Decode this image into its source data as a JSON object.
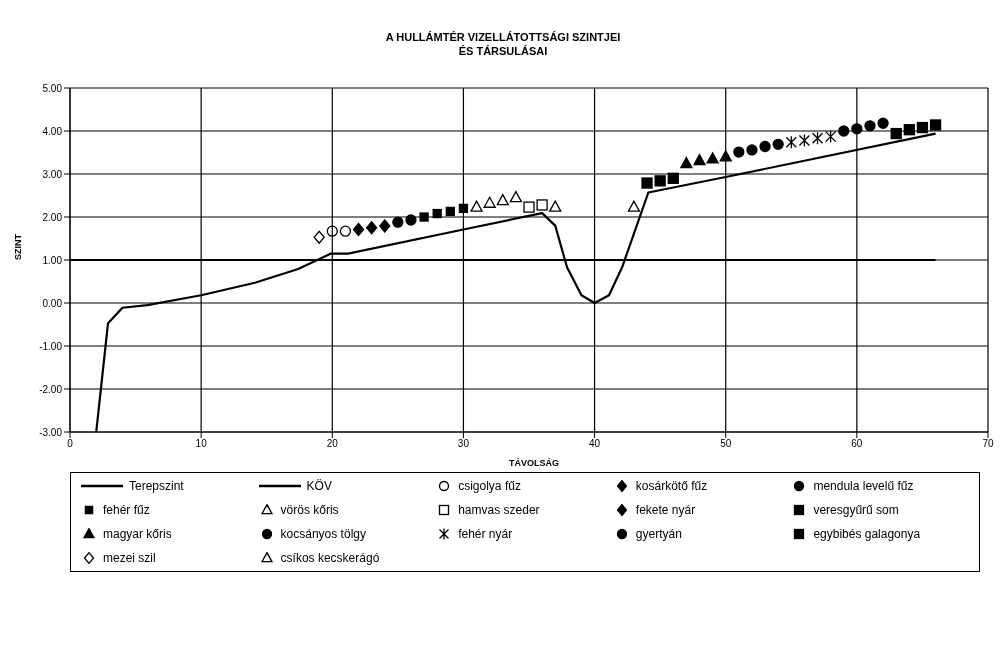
{
  "chart_data": {
    "type": "scatter",
    "title": "A HULLÁMTÉR VIZELLÁTOTTSÁGI SZINTJEI\nÉS TÁRSULÁSAI",
    "xlabel": "TÁVOLSÁG",
    "ylabel": "SZINT",
    "xlim": [
      0,
      70
    ],
    "xticks": [
      0,
      10,
      20,
      30,
      40,
      50,
      60,
      70
    ],
    "ylim": [
      -3,
      5
    ],
    "yticks": [
      {
        "value": -3,
        "label": "-3.00"
      },
      {
        "value": -2,
        "label": "-2.00"
      },
      {
        "value": -1,
        "label": "-1.00"
      },
      {
        "value": 0,
        "label": "0.00"
      },
      {
        "value": 1,
        "label": "1.00"
      },
      {
        "value": 2,
        "label": "2.00"
      },
      {
        "value": 3,
        "label": "3.00"
      },
      {
        "value": 4,
        "label": "4.00"
      },
      {
        "value": 5,
        "label": "5.00"
      }
    ],
    "grid": true,
    "legend": "bottom",
    "series": [
      {
        "name": "Terepszint",
        "type": "line",
        "marker": "none",
        "color": "#000000",
        "x": [
          2,
          2.9,
          4,
          5.9,
          10,
          14.1,
          17.4,
          19.9,
          21.2,
          30,
          36,
          37,
          37.9,
          39,
          40,
          41.1,
          42.1,
          44.1,
          50,
          66
        ],
        "values": [
          -3,
          -0.47,
          -0.11,
          -0.05,
          0.18,
          0.47,
          0.79,
          1.15,
          1.15,
          1.71,
          2.09,
          1.8,
          0.83,
          0.18,
          0,
          0.18,
          0.83,
          2.57,
          2.93,
          3.94
        ]
      },
      {
        "name": "KÖV",
        "type": "line",
        "marker": "none",
        "color": "#000000",
        "x": [
          0,
          66
        ],
        "values": [
          1,
          1
        ]
      },
      {
        "name": "csigolya fűz",
        "marker": "circle",
        "color": "#000000",
        "x": [
          20,
          21
        ],
        "values": [
          1.67,
          1.67
        ]
      },
      {
        "name": "kosárkötő fűz",
        "marker": "diamond",
        "color": "#000000",
        "x": [
          22,
          23
        ],
        "values": [
          1.71,
          1.75
        ]
      },
      {
        "name": "mendula levelű fűz",
        "marker": "circle",
        "color": "#000000",
        "x": [
          25,
          26
        ],
        "values": [
          1.88,
          1.93
        ]
      },
      {
        "name": "fehér fűz",
        "marker": "square",
        "color": "#000000",
        "x": [
          27,
          28,
          29,
          30
        ],
        "values": [
          2.0,
          2.08,
          2.13,
          2.2
        ]
      },
      {
        "name": "vörös kőris",
        "marker": "triangle",
        "color": "#000000",
        "x": [
          31,
          32,
          33,
          34
        ],
        "values": [
          2.23,
          2.32,
          2.38,
          2.45
        ]
      },
      {
        "name": "hamvas szeder",
        "marker": "square",
        "color": "#000000",
        "x": [
          35,
          36
        ],
        "values": [
          2.23,
          2.28
        ]
      },
      {
        "name": "fekete nyár",
        "marker": "diamond",
        "color": "#000000",
        "x": [
          24
        ],
        "values": [
          1.79
        ]
      },
      {
        "name": "veresgyűrű som",
        "marker": "square",
        "color": "#000000",
        "x": [
          44,
          45,
          46
        ],
        "values": [
          2.79,
          2.84,
          2.9
        ]
      },
      {
        "name": "magyar kőris",
        "marker": "triangle",
        "color": "#000000",
        "x": [
          47,
          48,
          49,
          50
        ],
        "values": [
          3.24,
          3.31,
          3.35,
          3.4
        ]
      },
      {
        "name": "kocsányos tölgy",
        "marker": "circle",
        "color": "#000000",
        "x": [
          51,
          52,
          53,
          54
        ],
        "values": [
          3.51,
          3.56,
          3.64,
          3.69
        ]
      },
      {
        "name": "fehér nyár",
        "marker": "cross",
        "color": "#000000",
        "x": [
          55,
          56,
          57,
          58
        ],
        "values": [
          3.74,
          3.78,
          3.83,
          3.87
        ]
      },
      {
        "name": "gyertyán",
        "marker": "circle",
        "color": "#000000",
        "x": [
          59,
          60,
          61,
          62
        ],
        "values": [
          4.0,
          4.05,
          4.12,
          4.18
        ]
      },
      {
        "name": "egybibés galagonya",
        "marker": "square",
        "color": "#000000",
        "x": [
          63,
          64,
          65,
          66
        ],
        "values": [
          3.94,
          4.03,
          4.08,
          4.14
        ]
      },
      {
        "name": "mezei szil",
        "marker": "diamond",
        "color": "#000000",
        "x": [
          19
        ],
        "values": [
          1.53
        ]
      },
      {
        "name": "csíkos kecskerágó",
        "marker": "triangle",
        "color": "#000000",
        "x": [
          37,
          43
        ],
        "values": [
          2.23,
          2.23
        ]
      }
    ]
  }
}
